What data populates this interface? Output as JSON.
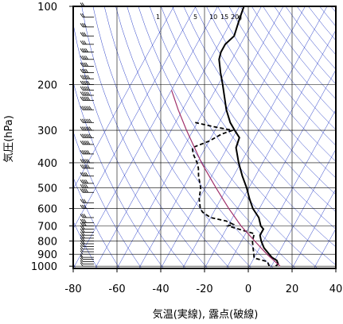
{
  "chart_data": {
    "type": "line",
    "xlabel": "気温(実線), 露点(破線)",
    "ylabel": "気圧(hPa)",
    "xlim": [
      -80,
      40
    ],
    "ylim": [
      1020,
      100
    ],
    "y_scale": "log",
    "x_ticks": [
      -80,
      -60,
      -40,
      -20,
      0,
      20,
      40
    ],
    "x_tick_labels": [
      "-80",
      "-60",
      "-40",
      "-20",
      "0",
      "20",
      "40"
    ],
    "y_ticks": [
      100,
      200,
      300,
      400,
      500,
      600,
      700,
      800,
      900,
      1000
    ],
    "y_tick_labels": [
      "100",
      "200",
      "300",
      "400",
      "500",
      "600",
      "700",
      "800",
      "900",
      "1000"
    ],
    "mixing_ratio_labels": [
      "1",
      "5",
      "10",
      "15",
      "20",
      "g"
    ],
    "colors": {
      "temperature": "#000000",
      "dewpoint": "#000000",
      "parcel": "#a0306a",
      "background_lines": "#2a3fc8",
      "frame": "#000000"
    },
    "series": [
      {
        "style": "solid",
        "points": [
          {
            "p": 1000,
            "t": 12
          },
          {
            "p": 980,
            "t": 12.5
          },
          {
            "p": 950,
            "t": 11
          },
          {
            "p": 925,
            "t": 8
          },
          {
            "p": 900,
            "t": 6
          },
          {
            "p": 850,
            "t": 2
          },
          {
            "p": 800,
            "t": -1
          },
          {
            "p": 760,
            "t": -3
          },
          {
            "p": 720,
            "t": -3
          },
          {
            "p": 700,
            "t": -5
          },
          {
            "p": 650,
            "t": -8
          },
          {
            "p": 600,
            "t": -13
          },
          {
            "p": 550,
            "t": -17
          },
          {
            "p": 500,
            "t": -21
          },
          {
            "p": 450,
            "t": -26
          },
          {
            "p": 400,
            "t": -31
          },
          {
            "p": 350,
            "t": -36
          },
          {
            "p": 320,
            "t": -37
          },
          {
            "p": 300,
            "t": -41
          },
          {
            "p": 280,
            "t": -45
          },
          {
            "p": 250,
            "t": -50
          },
          {
            "p": 230,
            "t": -53
          },
          {
            "p": 200,
            "t": -58
          },
          {
            "p": 180,
            "t": -62
          },
          {
            "p": 160,
            "t": -66
          },
          {
            "p": 150,
            "t": -67
          },
          {
            "p": 140,
            "t": -67
          },
          {
            "p": 130,
            "t": -65
          },
          {
            "p": 120,
            "t": -66
          },
          {
            "p": 110,
            "t": -67
          },
          {
            "p": 100,
            "t": -68
          }
        ]
      },
      {
        "style": "dashed",
        "points": [
          {
            "p": 1000,
            "t": 9
          },
          {
            "p": 960,
            "t": 7
          },
          {
            "p": 930,
            "t": 0
          },
          {
            "p": 900,
            "t": -1
          },
          {
            "p": 850,
            "t": -3
          },
          {
            "p": 800,
            "t": -5
          },
          {
            "p": 750,
            "t": -6
          },
          {
            "p": 700,
            "t": -20
          },
          {
            "p": 690,
            "t": -18
          },
          {
            "p": 670,
            "t": -22
          },
          {
            "p": 650,
            "t": -30
          },
          {
            "p": 620,
            "t": -35
          },
          {
            "p": 600,
            "t": -37
          },
          {
            "p": 550,
            "t": -40
          },
          {
            "p": 500,
            "t": -42
          },
          {
            "p": 450,
            "t": -46
          },
          {
            "p": 420,
            "t": -48
          },
          {
            "p": 400,
            "t": -50
          },
          {
            "p": 370,
            "t": -54
          },
          {
            "p": 350,
            "t": -56
          },
          {
            "p": 330,
            "t": -50
          },
          {
            "p": 310,
            "t": -46
          },
          {
            "p": 300,
            "t": -42
          },
          {
            "p": 290,
            "t": -52
          },
          {
            "p": 280,
            "t": -61
          }
        ]
      },
      {
        "style": "solid-parcel",
        "points": [
          {
            "p": 1000,
            "t": 14
          },
          {
            "p": 900,
            "t": 5
          },
          {
            "p": 800,
            "t": -4
          },
          {
            "p": 700,
            "t": -14
          },
          {
            "p": 600,
            "t": -24
          },
          {
            "p": 500,
            "t": -35
          },
          {
            "p": 400,
            "t": -48
          },
          {
            "p": 300,
            "t": -63
          },
          {
            "p": 250,
            "t": -72
          },
          {
            "p": 210,
            "t": -80
          }
        ]
      }
    ],
    "wind_barbs": {
      "levels": [
        1000,
        980,
        960,
        940,
        925,
        900,
        880,
        860,
        840,
        820,
        800,
        780,
        760,
        740,
        720,
        700,
        680,
        650,
        600,
        570,
        520,
        500,
        480,
        450,
        420,
        400,
        370,
        340,
        320,
        300,
        280,
        250,
        230,
        220,
        210,
        200,
        190,
        180,
        170,
        160,
        150,
        140,
        130,
        120,
        110,
        100
      ],
      "barbs": [
        1,
        1,
        1,
        1,
        1,
        1,
        1,
        1,
        2,
        2,
        2,
        2,
        2,
        2,
        2,
        3,
        3,
        3,
        3,
        3,
        4,
        4,
        4,
        4,
        5,
        5,
        5,
        5,
        6,
        6,
        6,
        6,
        5,
        5,
        5,
        5,
        5,
        4,
        4,
        4,
        4,
        3,
        3,
        3,
        2,
        2
      ]
    }
  }
}
